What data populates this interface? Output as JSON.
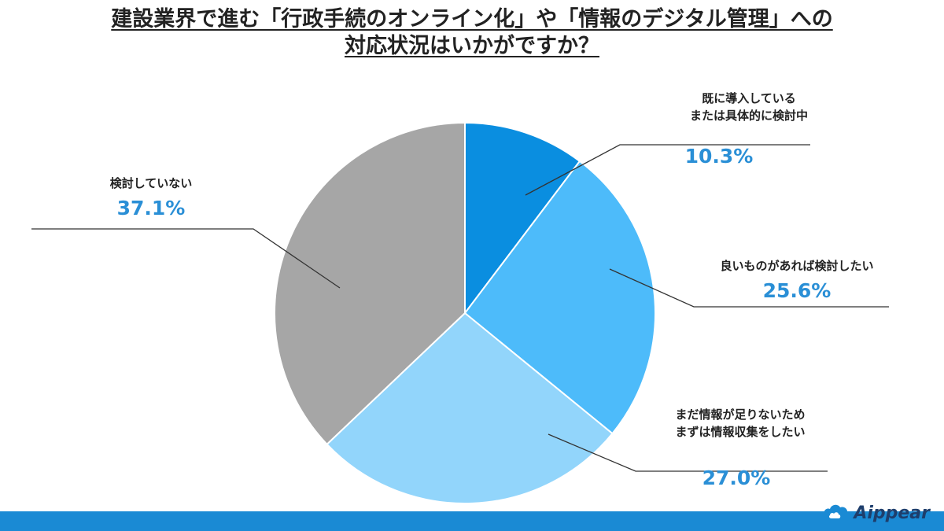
{
  "title": {
    "line1": "建設業界で進む「行政手続のオンライン化」や「情報のデジタル管理」への",
    "line2": "対応状況はいかがですか？"
  },
  "brand": {
    "name": "Aippear"
  },
  "chart_data": {
    "type": "pie",
    "start_angle_deg": 0,
    "direction": "clockwise",
    "slices": [
      {
        "label_lines": [
          "既に導入している",
          "または具体的に検討中"
        ],
        "value": 10.3,
        "value_label": "10.3%",
        "color": "#0a8ee0"
      },
      {
        "label_lines": [
          "良いものがあれば検討したい"
        ],
        "value": 25.6,
        "value_label": "25.6%",
        "color": "#4dbbfa"
      },
      {
        "label_lines": [
          "まだ情報が足りないため",
          "まずは情報収集をしたい"
        ],
        "value": 27.0,
        "value_label": "27.0%",
        "color": "#92d5fb"
      },
      {
        "label_lines": [
          "検討していない"
        ],
        "value": 37.1,
        "value_label": "37.1%",
        "color": "#a6a6a6"
      }
    ],
    "percent_color": "#2a8fd6"
  }
}
